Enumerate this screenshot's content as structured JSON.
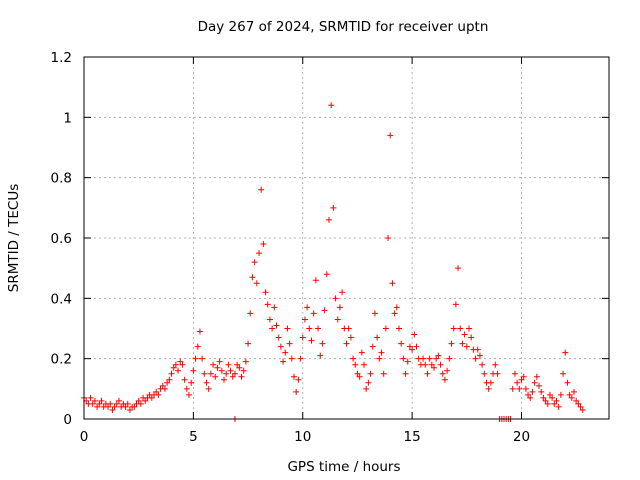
{
  "chart_data": {
    "type": "scatter",
    "title": "Day 267 of 2024, SRMTID for receiver uptn",
    "xlabel": "GPS time / hours",
    "ylabel": "SRMTID / TECUs",
    "xlim": [
      0,
      24
    ],
    "ylim": [
      0,
      1.2
    ],
    "grid": true,
    "marker": "+",
    "color": "#ff0000",
    "x_ticks": [
      0,
      5,
      10,
      15,
      20
    ],
    "x_tick_labels": [
      "0",
      "5",
      "10",
      "15",
      "20"
    ],
    "y_ticks": [
      0,
      0.2,
      0.4,
      0.6,
      0.8,
      1.0,
      1.2
    ],
    "y_tick_labels": [
      "0",
      "0.2",
      "0.4",
      "0.6",
      "0.8",
      "1",
      "1.2"
    ],
    "series": [
      {
        "name": "SRMTID",
        "points": [
          [
            0.0,
            0.07
          ],
          [
            0.1,
            0.06
          ],
          [
            0.2,
            0.05
          ],
          [
            0.3,
            0.07
          ],
          [
            0.4,
            0.05
          ],
          [
            0.5,
            0.06
          ],
          [
            0.6,
            0.04
          ],
          [
            0.7,
            0.05
          ],
          [
            0.8,
            0.06
          ],
          [
            0.9,
            0.04
          ],
          [
            1.0,
            0.05
          ],
          [
            1.1,
            0.04
          ],
          [
            1.2,
            0.05
          ],
          [
            1.3,
            0.03
          ],
          [
            1.4,
            0.04
          ],
          [
            1.5,
            0.05
          ],
          [
            1.6,
            0.06
          ],
          [
            1.7,
            0.04
          ],
          [
            1.8,
            0.05
          ],
          [
            1.9,
            0.04
          ],
          [
            2.0,
            0.05
          ],
          [
            2.1,
            0.03
          ],
          [
            2.2,
            0.04
          ],
          [
            2.3,
            0.04
          ],
          [
            2.4,
            0.05
          ],
          [
            2.5,
            0.06
          ],
          [
            2.6,
            0.05
          ],
          [
            2.7,
            0.07
          ],
          [
            2.8,
            0.06
          ],
          [
            2.9,
            0.07
          ],
          [
            3.0,
            0.08
          ],
          [
            3.1,
            0.07
          ],
          [
            3.2,
            0.08
          ],
          [
            3.3,
            0.09
          ],
          [
            3.4,
            0.08
          ],
          [
            3.5,
            0.1
          ],
          [
            3.6,
            0.11
          ],
          [
            3.7,
            0.1
          ],
          [
            3.8,
            0.12
          ],
          [
            3.9,
            0.13
          ],
          [
            4.0,
            0.15
          ],
          [
            4.1,
            0.17
          ],
          [
            4.2,
            0.18
          ],
          [
            4.3,
            0.16
          ],
          [
            4.4,
            0.19
          ],
          [
            4.5,
            0.18
          ],
          [
            4.6,
            0.13
          ],
          [
            4.7,
            0.1
          ],
          [
            4.8,
            0.08
          ],
          [
            4.9,
            0.12
          ],
          [
            5.0,
            0.16
          ],
          [
            5.1,
            0.2
          ],
          [
            5.2,
            0.24
          ],
          [
            5.3,
            0.29
          ],
          [
            5.4,
            0.2
          ],
          [
            5.5,
            0.15
          ],
          [
            5.6,
            0.12
          ],
          [
            5.7,
            0.1
          ],
          [
            5.8,
            0.15
          ],
          [
            5.9,
            0.18
          ],
          [
            6.0,
            0.14
          ],
          [
            6.1,
            0.17
          ],
          [
            6.2,
            0.19
          ],
          [
            6.3,
            0.16
          ],
          [
            6.4,
            0.13
          ],
          [
            6.5,
            0.15
          ],
          [
            6.6,
            0.18
          ],
          [
            6.7,
            0.16
          ],
          [
            6.8,
            0.14
          ],
          [
            6.9,
            0.15
          ],
          [
            7.0,
            0.18
          ],
          [
            7.1,
            0.17
          ],
          [
            7.2,
            0.14
          ],
          [
            7.3,
            0.16
          ],
          [
            7.4,
            0.19
          ],
          [
            7.5,
            0.25
          ],
          [
            7.6,
            0.35
          ],
          [
            7.7,
            0.47
          ],
          [
            7.8,
            0.52
          ],
          [
            7.9,
            0.45
          ],
          [
            8.0,
            0.55
          ],
          [
            8.1,
            0.76
          ],
          [
            8.2,
            0.58
          ],
          [
            8.3,
            0.42
          ],
          [
            8.4,
            0.38
          ],
          [
            8.5,
            0.33
          ],
          [
            8.6,
            0.3
          ],
          [
            8.7,
            0.37
          ],
          [
            8.8,
            0.31
          ],
          [
            8.9,
            0.27
          ],
          [
            9.0,
            0.24
          ],
          [
            9.1,
            0.19
          ],
          [
            9.2,
            0.22
          ],
          [
            9.3,
            0.3
          ],
          [
            9.4,
            0.25
          ],
          [
            9.5,
            0.2
          ],
          [
            9.6,
            0.14
          ],
          [
            9.7,
            0.09
          ],
          [
            9.8,
            0.13
          ],
          [
            9.9,
            0.2
          ],
          [
            10.0,
            0.27
          ],
          [
            10.1,
            0.33
          ],
          [
            10.2,
            0.37
          ],
          [
            10.3,
            0.3
          ],
          [
            10.4,
            0.26
          ],
          [
            10.5,
            0.35
          ],
          [
            10.6,
            0.46
          ],
          [
            10.7,
            0.3
          ],
          [
            10.8,
            0.21
          ],
          [
            10.9,
            0.25
          ],
          [
            11.0,
            0.36
          ],
          [
            11.1,
            0.48
          ],
          [
            11.2,
            0.66
          ],
          [
            11.3,
            1.04
          ],
          [
            11.4,
            0.7
          ],
          [
            11.5,
            0.4
          ],
          [
            11.6,
            0.33
          ],
          [
            11.7,
            0.37
          ],
          [
            11.8,
            0.42
          ],
          [
            11.9,
            0.3
          ],
          [
            12.0,
            0.25
          ],
          [
            12.1,
            0.3
          ],
          [
            12.2,
            0.27
          ],
          [
            12.3,
            0.2
          ],
          [
            12.4,
            0.18
          ],
          [
            12.5,
            0.15
          ],
          [
            12.6,
            0.14
          ],
          [
            12.7,
            0.22
          ],
          [
            12.8,
            0.18
          ],
          [
            12.9,
            0.1
          ],
          [
            13.0,
            0.12
          ],
          [
            13.1,
            0.15
          ],
          [
            13.2,
            0.24
          ],
          [
            13.3,
            0.35
          ],
          [
            13.4,
            0.27
          ],
          [
            13.5,
            0.2
          ],
          [
            13.6,
            0.22
          ],
          [
            13.7,
            0.15
          ],
          [
            13.8,
            0.3
          ],
          [
            13.9,
            0.6
          ],
          [
            14.0,
            0.94
          ],
          [
            14.1,
            0.45
          ],
          [
            14.2,
            0.35
          ],
          [
            14.3,
            0.37
          ],
          [
            14.4,
            0.3
          ],
          [
            14.5,
            0.25
          ],
          [
            14.6,
            0.2
          ],
          [
            14.7,
            0.15
          ],
          [
            14.8,
            0.19
          ],
          [
            14.9,
            0.24
          ],
          [
            15.0,
            0.23
          ],
          [
            15.1,
            0.28
          ],
          [
            15.2,
            0.24
          ],
          [
            15.3,
            0.2
          ],
          [
            15.4,
            0.18
          ],
          [
            15.5,
            0.2
          ],
          [
            15.6,
            0.18
          ],
          [
            15.7,
            0.15
          ],
          [
            15.8,
            0.2
          ],
          [
            15.9,
            0.18
          ],
          [
            16.0,
            0.17
          ],
          [
            16.1,
            0.2
          ],
          [
            16.2,
            0.21
          ],
          [
            16.3,
            0.18
          ],
          [
            16.4,
            0.15
          ],
          [
            16.5,
            0.13
          ],
          [
            16.6,
            0.16
          ],
          [
            16.7,
            0.2
          ],
          [
            16.8,
            0.25
          ],
          [
            16.9,
            0.3
          ],
          [
            17.0,
            0.38
          ],
          [
            17.1,
            0.5
          ],
          [
            17.2,
            0.3
          ],
          [
            17.3,
            0.25
          ],
          [
            17.4,
            0.28
          ],
          [
            17.5,
            0.24
          ],
          [
            17.6,
            0.3
          ],
          [
            17.7,
            0.27
          ],
          [
            17.8,
            0.23
          ],
          [
            17.9,
            0.2
          ],
          [
            18.0,
            0.23
          ],
          [
            18.1,
            0.21
          ],
          [
            18.2,
            0.18
          ],
          [
            18.3,
            0.15
          ],
          [
            18.4,
            0.12
          ],
          [
            18.5,
            0.1
          ],
          [
            18.6,
            0.12
          ],
          [
            18.7,
            0.15
          ],
          [
            18.8,
            0.18
          ],
          [
            18.9,
            0.15
          ],
          [
            19.0,
            0.0
          ],
          [
            19.1,
            0.0
          ],
          [
            19.2,
            0.0
          ],
          [
            19.3,
            0.0
          ],
          [
            19.4,
            0.0
          ],
          [
            19.5,
            0.0
          ],
          [
            19.6,
            0.1
          ],
          [
            19.7,
            0.15
          ],
          [
            19.8,
            0.12
          ],
          [
            19.9,
            0.1
          ],
          [
            20.0,
            0.13
          ],
          [
            20.1,
            0.14
          ],
          [
            20.2,
            0.1
          ],
          [
            20.3,
            0.08
          ],
          [
            20.4,
            0.07
          ],
          [
            20.5,
            0.09
          ],
          [
            20.6,
            0.12
          ],
          [
            20.7,
            0.14
          ],
          [
            20.8,
            0.11
          ],
          [
            20.9,
            0.09
          ],
          [
            21.0,
            0.07
          ],
          [
            21.1,
            0.06
          ],
          [
            21.2,
            0.05
          ],
          [
            21.3,
            0.08
          ],
          [
            21.4,
            0.07
          ],
          [
            21.5,
            0.05
          ],
          [
            21.6,
            0.06
          ],
          [
            21.7,
            0.04
          ],
          [
            21.8,
            0.08
          ],
          [
            21.9,
            0.15
          ],
          [
            22.0,
            0.22
          ],
          [
            22.1,
            0.12
          ],
          [
            22.2,
            0.08
          ],
          [
            22.3,
            0.07
          ],
          [
            22.4,
            0.09
          ],
          [
            22.5,
            0.06
          ],
          [
            22.6,
            0.05
          ],
          [
            22.7,
            0.04
          ],
          [
            22.8,
            0.03
          ],
          [
            6.9,
            0.0
          ]
        ]
      }
    ]
  }
}
